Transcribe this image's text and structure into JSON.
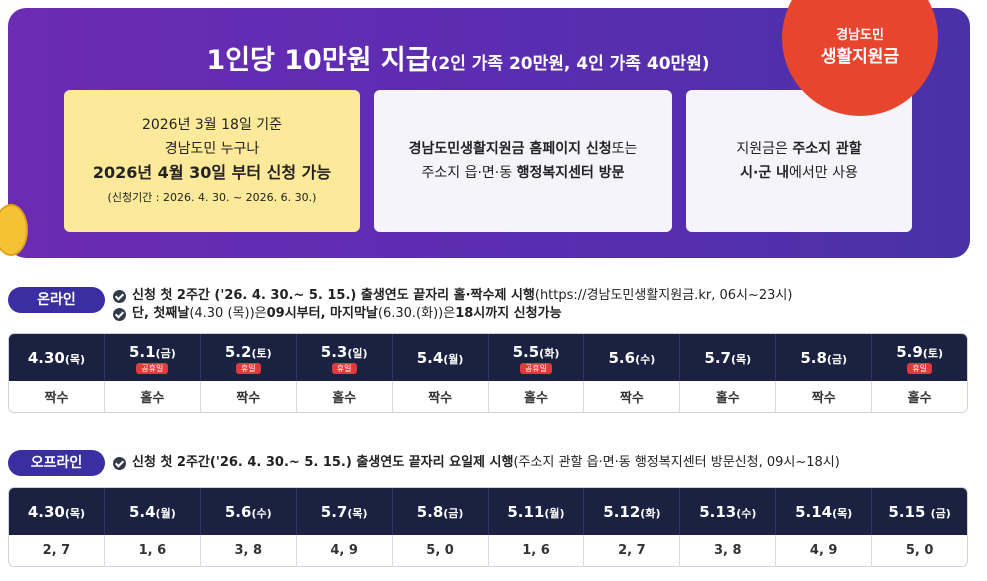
{
  "banner": {
    "title": "1인당 10만원 지급",
    "subtitle": "(2인 가족 20만원, 4인 가족 40만원)",
    "badge": {
      "line1": "경남도민",
      "line2": "생활지원금"
    },
    "cards": [
      {
        "lines": [
          [
            {
              "text": "2026년 3월 18일 기준"
            }
          ],
          [
            {
              "text": "경남도민 누구나"
            }
          ],
          [
            {
              "text": "2026년 4월 30일 부터 신청 가능",
              "bold": true
            }
          ],
          [
            {
              "text": "(신청기간 : 2026. 4. 30. ~ 2026. 6. 30.)",
              "small": true
            }
          ]
        ]
      },
      {
        "lines": [
          [
            {
              "text": "경남도민생활지원금 홈페이지 신청",
              "bold": true
            },
            {
              "text": "또는"
            }
          ],
          [
            {
              "text": "주소지 읍·면·동 "
            },
            {
              "text": "행정복지센터 방문",
              "bold": true
            }
          ]
        ]
      },
      {
        "lines": [
          [
            {
              "text": "지원금은 "
            },
            {
              "text": "주소지 관할",
              "bold": true
            }
          ],
          [
            {
              "text": "시·군 내",
              "bold": true
            },
            {
              "text": "에서만 사용"
            }
          ]
        ]
      }
    ]
  },
  "online": {
    "label": "온라인",
    "notes": [
      [
        {
          "text": "신청 첫 2주간 ('26. 4. 30.~ 5. 15.) 출생연도 끝자리 홀·짝수제 시행",
          "bold": true
        },
        {
          "text": "(https://경남도민생활지원금.kr, 06시~23시)"
        }
      ],
      [
        {
          "text": "단, 첫째날",
          "bold": true
        },
        {
          "text": "(4.30 (목))은 "
        },
        {
          "text": "09시부터, 마지막날",
          "bold": true
        },
        {
          "text": "(6.30.(화))은 "
        },
        {
          "text": "18시까지 신청가능",
          "bold": true
        }
      ]
    ],
    "columns": [
      {
        "date": "4.30",
        "day": "(목)",
        "tag": null,
        "value": "짝수"
      },
      {
        "date": "5.1",
        "day": "(금)",
        "tag": "공휴일",
        "value": "홀수"
      },
      {
        "date": "5.2",
        "day": "(토)",
        "tag": "휴일",
        "value": "짝수"
      },
      {
        "date": "5.3",
        "day": "(일)",
        "tag": "휴일",
        "value": "홀수"
      },
      {
        "date": "5.4",
        "day": "(월)",
        "tag": null,
        "value": "짝수"
      },
      {
        "date": "5.5",
        "day": "(화)",
        "tag": "공휴일",
        "value": "홀수"
      },
      {
        "date": "5.6",
        "day": "(수)",
        "tag": null,
        "value": "짝수"
      },
      {
        "date": "5.7",
        "day": "(목)",
        "tag": null,
        "value": "홀수"
      },
      {
        "date": "5.8",
        "day": "(금)",
        "tag": null,
        "value": "짝수"
      },
      {
        "date": "5.9",
        "day": "(토)",
        "tag": "휴일",
        "value": "홀수"
      }
    ]
  },
  "offline": {
    "label": "오프라인",
    "notes": [
      [
        {
          "text": "신청 첫 2주간('26. 4. 30.~ 5. 15.) 출생연도 끝자리 요일제 시행",
          "bold": true
        },
        {
          "text": "(주소지 관할 읍·면·동 행정복지센터 방문신청, 09시~18시)"
        }
      ]
    ],
    "columns": [
      {
        "date": "4.30",
        "day": "(목)",
        "tag": null,
        "value": "2, 7"
      },
      {
        "date": "5.4",
        "day": "(월)",
        "tag": null,
        "value": "1, 6"
      },
      {
        "date": "5.6",
        "day": "(수)",
        "tag": null,
        "value": "3, 8"
      },
      {
        "date": "5.7",
        "day": "(목)",
        "tag": null,
        "value": "4, 9"
      },
      {
        "date": "5.8",
        "day": "(금)",
        "tag": null,
        "value": "5, 0"
      },
      {
        "date": "5.11",
        "day": "(월)",
        "tag": null,
        "value": "1, 6"
      },
      {
        "date": "5.12",
        "day": "(화)",
        "tag": null,
        "value": "2, 7"
      },
      {
        "date": "5.13",
        "day": "(수)",
        "tag": null,
        "value": "3, 8"
      },
      {
        "date": "5.14",
        "day": "(목)",
        "tag": null,
        "value": "4, 9"
      },
      {
        "date": "5.15 ",
        "day": "(금)",
        "tag": null,
        "value": "5, 0"
      }
    ]
  }
}
